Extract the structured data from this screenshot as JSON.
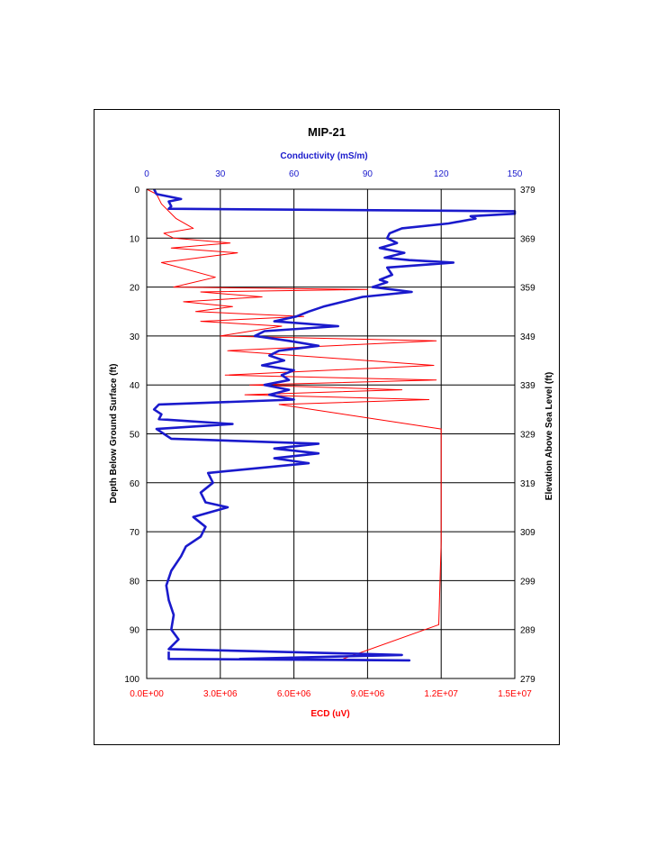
{
  "chart_data": {
    "type": "line",
    "title": "MIP-21",
    "top_axis": {
      "label": "Conductivity (mS/m)",
      "range": [
        0,
        150
      ],
      "ticks": [
        "0",
        "30",
        "60",
        "90",
        "120",
        "150"
      ],
      "color": "#1a1acc"
    },
    "bottom_axis": {
      "label": "ECD (uV)",
      "range": [
        0,
        15000000
      ],
      "ticks": [
        "0.0E+00",
        "3.0E+06",
        "6.0E+06",
        "9.0E+06",
        "1.2E+07",
        "1.5E+07"
      ],
      "color": "#ff0000"
    },
    "left_axis": {
      "label": "Depth Below Ground Surface (ft)",
      "range": [
        0,
        100
      ],
      "ticks": [
        "0",
        "10",
        "20",
        "30",
        "40",
        "50",
        "60",
        "70",
        "80",
        "90",
        "100"
      ],
      "inverted": true
    },
    "right_axis": {
      "label": "Elevation Above Sea Level (ft)",
      "range": [
        379,
        279
      ],
      "ticks": [
        "379",
        "369",
        "359",
        "349",
        "339",
        "329",
        "319",
        "309",
        "299",
        "289",
        "279"
      ]
    },
    "grid": true,
    "series": [
      {
        "axis": "conductivity",
        "color": "#1a1acc",
        "points": [
          [
            3,
            0
          ],
          [
            4,
            1
          ],
          [
            14,
            2
          ],
          [
            9,
            2.5
          ],
          [
            10,
            3.5
          ],
          [
            9,
            4
          ],
          [
            150,
            4.5
          ],
          [
            150,
            5
          ],
          [
            132,
            5.5
          ],
          [
            134,
            6
          ],
          [
            123,
            7
          ],
          [
            104,
            8
          ],
          [
            99,
            9
          ],
          [
            98,
            10
          ],
          [
            102,
            11
          ],
          [
            95,
            12
          ],
          [
            105,
            13
          ],
          [
            97,
            14
          ],
          [
            107,
            14.5
          ],
          [
            125,
            15
          ],
          [
            98,
            16
          ],
          [
            100,
            17.5
          ],
          [
            95,
            18.5
          ],
          [
            98,
            19
          ],
          [
            92,
            20
          ],
          [
            108,
            21
          ],
          [
            88,
            22
          ],
          [
            80,
            23
          ],
          [
            72,
            24
          ],
          [
            66,
            25
          ],
          [
            61,
            26
          ],
          [
            52,
            27
          ],
          [
            78,
            28
          ],
          [
            48,
            29
          ],
          [
            44,
            30
          ],
          [
            58,
            31
          ],
          [
            70,
            32
          ],
          [
            54,
            33
          ],
          [
            50,
            34
          ],
          [
            56,
            35
          ],
          [
            47,
            36
          ],
          [
            60,
            37
          ],
          [
            55,
            38
          ],
          [
            58,
            39
          ],
          [
            48,
            40
          ],
          [
            58,
            41
          ],
          [
            50,
            42
          ],
          [
            60,
            43
          ],
          [
            5,
            44
          ],
          [
            3,
            45
          ],
          [
            6,
            46
          ],
          [
            5,
            47
          ],
          [
            35,
            48
          ],
          [
            4,
            49
          ],
          [
            7,
            50
          ],
          [
            10,
            51
          ],
          [
            70,
            52
          ],
          [
            52,
            53
          ],
          [
            70,
            54
          ],
          [
            52,
            55
          ],
          [
            66,
            56
          ],
          [
            25,
            58
          ],
          [
            27,
            60
          ],
          [
            22,
            62
          ],
          [
            24,
            64
          ],
          [
            33,
            65
          ],
          [
            19,
            67
          ],
          [
            24,
            69
          ],
          [
            22,
            71
          ],
          [
            16,
            73
          ],
          [
            14,
            75
          ],
          [
            10,
            78
          ],
          [
            8,
            81
          ],
          [
            9,
            84
          ],
          [
            11,
            87
          ],
          [
            10,
            90
          ],
          [
            13,
            92
          ],
          [
            9,
            94
          ],
          [
            91,
            95
          ],
          [
            104,
            95.2
          ],
          [
            38,
            96
          ],
          [
            107,
            96.3
          ],
          [
            9,
            96
          ],
          [
            9,
            94.5
          ]
        ]
      },
      {
        "axis": "ecd",
        "color": "#ff0000",
        "points": [
          [
            0,
            0
          ],
          [
            400000,
            1
          ],
          [
            600000,
            3
          ],
          [
            1200000,
            6
          ],
          [
            1900000,
            8
          ],
          [
            700000,
            9
          ],
          [
            1100000,
            10
          ],
          [
            3400000,
            11
          ],
          [
            1000000,
            12
          ],
          [
            3700000,
            13
          ],
          [
            600000,
            15
          ],
          [
            2800000,
            18
          ],
          [
            1100000,
            20
          ],
          [
            9000000,
            20.5
          ],
          [
            2200000,
            21
          ],
          [
            4700000,
            22
          ],
          [
            1500000,
            23
          ],
          [
            3500000,
            24
          ],
          [
            2000000,
            25
          ],
          [
            6400000,
            26
          ],
          [
            2200000,
            27
          ],
          [
            5500000,
            28
          ],
          [
            3000000,
            30
          ],
          [
            11800000,
            31
          ],
          [
            3300000,
            33
          ],
          [
            11700000,
            36
          ],
          [
            3200000,
            38
          ],
          [
            11800000,
            39
          ],
          [
            4200000,
            40
          ],
          [
            10400000,
            41
          ],
          [
            4000000,
            42
          ],
          [
            11500000,
            43
          ],
          [
            5400000,
            44
          ],
          [
            12000000,
            49
          ],
          [
            12000000,
            54
          ],
          [
            12000000,
            67
          ],
          [
            12000000,
            72
          ],
          [
            11900000,
            89
          ],
          [
            8000000,
            96
          ]
        ]
      }
    ]
  }
}
